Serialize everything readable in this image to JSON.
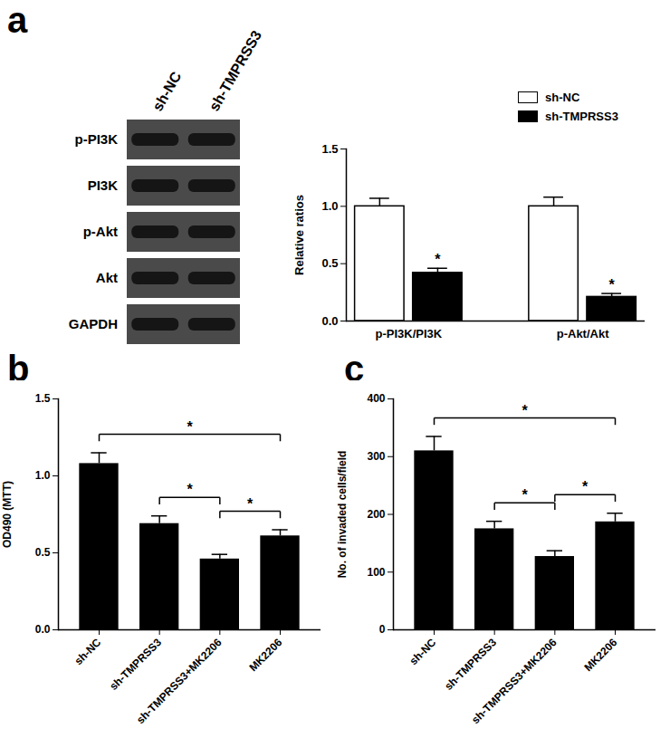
{
  "blot": {
    "panel": "a",
    "lanes": [
      "sh-NC",
      "sh-TMPRSS3"
    ],
    "rows": [
      "p-PI3K",
      "PI3K",
      "p-Akt",
      "Akt",
      "GAPDH"
    ]
  },
  "chart_data": [
    {
      "type": "bar",
      "ylabel": "Relative ratios",
      "categories": [
        "p-PI3K/PI3K",
        "p-Akt/Akt"
      ],
      "series": [
        {
          "name": "sh-NC",
          "color": "#ffffff",
          "values": [
            1.0,
            1.0
          ],
          "errors": [
            0.07,
            0.08
          ]
        },
        {
          "name": "sh-TMPRSS3",
          "color": "#000000",
          "values": [
            0.42,
            0.21
          ],
          "errors": [
            0.04,
            0.03
          ]
        }
      ],
      "annotations": [
        {
          "category": "p-PI3K/PI3K",
          "series": "sh-TMPRSS3",
          "text": "*"
        },
        {
          "category": "p-Akt/Akt",
          "series": "sh-TMPRSS3",
          "text": "*"
        }
      ],
      "ylim": [
        0,
        1.5
      ],
      "yticks": [
        {
          "value": 0,
          "label": "0.0"
        },
        {
          "value": 0.5,
          "label": "0.5"
        },
        {
          "value": 1,
          "label": "1.0"
        },
        {
          "value": 1.5,
          "label": "1.5"
        }
      ],
      "legend": "top-right"
    },
    {
      "type": "bar",
      "panel": "b",
      "ylabel": "OD490 (MTT)",
      "categories": [
        "sh-NC",
        "sh-TMPRSS3",
        "sh-TMPRSS3+MK2206",
        "MK2206"
      ],
      "values": [
        1.08,
        0.69,
        0.46,
        0.61
      ],
      "errors": [
        0.07,
        0.05,
        0.03,
        0.04
      ],
      "color": "#000000",
      "ylim": [
        0,
        1.5
      ],
      "yticks": [
        {
          "value": 0,
          "label": "0.0"
        },
        {
          "value": 0.5,
          "label": "0.5"
        },
        {
          "value": 1,
          "label": "1.0"
        },
        {
          "value": 1.5,
          "label": "1.5"
        }
      ],
      "significance": [
        {
          "from": "sh-NC",
          "to": "MK2206",
          "text": "*"
        },
        {
          "from": "sh-TMPRSS3",
          "to": "sh-TMPRSS3+MK2206",
          "text": "*"
        },
        {
          "from": "sh-TMPRSS3+MK2206",
          "to": "MK2206",
          "text": "*"
        }
      ]
    },
    {
      "type": "bar",
      "panel": "c",
      "ylabel": "No. of invaded cells/field",
      "categories": [
        "sh-NC",
        "sh-TMPRSS3",
        "sh-TMPRSS3+MK2206",
        "MK2206"
      ],
      "values": [
        310,
        175,
        127,
        187
      ],
      "errors": [
        25,
        13,
        10,
        15
      ],
      "color": "#000000",
      "ylim": [
        0,
        400
      ],
      "yticks": [
        0,
        100,
        200,
        300,
        400
      ],
      "significance": [
        {
          "from": "sh-NC",
          "to": "MK2206",
          "text": "*"
        },
        {
          "from": "sh-TMPRSS3",
          "to": "sh-TMPRSS3+MK2206",
          "text": "*"
        },
        {
          "from": "sh-TMPRSS3+MK2206",
          "to": "MK2206",
          "text": "*"
        }
      ]
    }
  ]
}
